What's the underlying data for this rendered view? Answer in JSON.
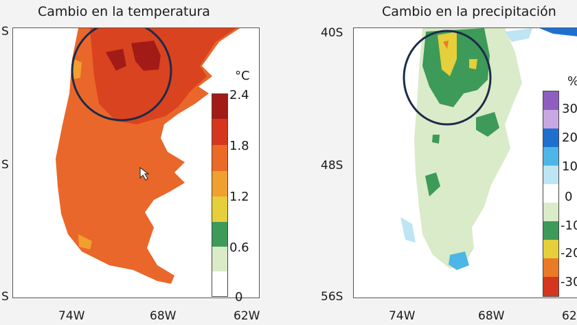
{
  "left_panel": {
    "title": "Cambio en la temperatura",
    "y_ticks": [
      "S",
      "S",
      "S"
    ],
    "x_ticks": [
      "74W",
      "68W",
      "62W"
    ],
    "colorbar": {
      "unit": "°C",
      "labels": [
        "2.4",
        "1.8",
        "1.2",
        "0.6",
        "0"
      ],
      "colors": [
        "#a31b17",
        "#d6361d",
        "#ea6a26",
        "#f0a030",
        "#e5cf3a",
        "#3d9a58",
        "#d9ebc8",
        "#ffffff"
      ]
    }
  },
  "right_panel": {
    "title": "Cambio en la precipitación",
    "y_ticks": [
      "40S",
      "48S",
      "56S"
    ],
    "x_ticks": [
      "74W",
      "68W",
      "62"
    ],
    "colorbar": {
      "unit": "%",
      "labels": [
        "30",
        "20",
        "10",
        "0",
        "-10",
        "-20",
        "-30"
      ],
      "colors": [
        "#8e5fc0",
        "#c7a8e0",
        "#1f6fcf",
        "#4db6e6",
        "#bde5f3",
        "#ffffff",
        "#d9ebc8",
        "#3d9a58",
        "#e5cf3a",
        "#ea7a26",
        "#d6361d"
      ]
    }
  },
  "colors": {
    "land_warm": "#e9672a",
    "land_hot": "#d9431f",
    "land_hottest": "#a31b17",
    "land_green_light": "#d9ebc8",
    "land_green_dark": "#3d9a58",
    "highlight_circle": "#1d2a4a"
  }
}
